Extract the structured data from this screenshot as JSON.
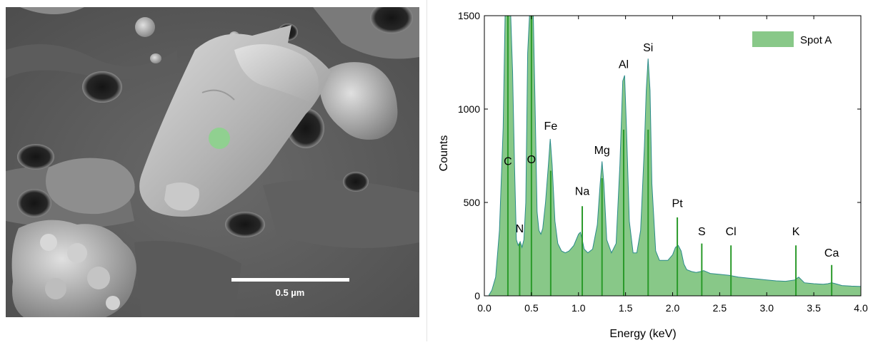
{
  "sem_image": {
    "scale_bar_label": "0.5 µm",
    "marker_color": "#90d090",
    "marker_label": "Spot A"
  },
  "chart_data": {
    "type": "area",
    "title": "",
    "xlabel": "Energy (keV)",
    "ylabel": "Counts",
    "xlim": [
      0.0,
      4.0
    ],
    "ylim": [
      0,
      1500
    ],
    "x_ticks": [
      "0.0",
      "0.5",
      "1.0",
      "1.5",
      "2.0",
      "2.5",
      "3.0",
      "3.5",
      "4.0"
    ],
    "y_ticks": [
      "0",
      "500",
      "1000",
      "1500"
    ],
    "x_tick_values": [
      0.0,
      0.5,
      1.0,
      1.5,
      2.0,
      2.5,
      3.0,
      3.5,
      4.0
    ],
    "y_tick_values": [
      0,
      500,
      1000,
      1500
    ],
    "grid": false,
    "legend_position": "top-right",
    "series": [
      {
        "name": "Spot A",
        "fill_color": "#88c888",
        "edge_color": "#2a8a8a",
        "x": [
          0.05,
          0.08,
          0.12,
          0.16,
          0.2,
          0.22,
          0.24,
          0.26,
          0.28,
          0.3,
          0.32,
          0.34,
          0.36,
          0.38,
          0.4,
          0.42,
          0.44,
          0.46,
          0.48,
          0.5,
          0.52,
          0.54,
          0.56,
          0.58,
          0.6,
          0.62,
          0.65,
          0.68,
          0.7,
          0.72,
          0.75,
          0.78,
          0.82,
          0.86,
          0.9,
          0.95,
          1.0,
          1.02,
          1.04,
          1.06,
          1.1,
          1.15,
          1.2,
          1.23,
          1.25,
          1.27,
          1.3,
          1.35,
          1.4,
          1.44,
          1.47,
          1.49,
          1.51,
          1.54,
          1.58,
          1.62,
          1.66,
          1.7,
          1.72,
          1.74,
          1.76,
          1.78,
          1.82,
          1.86,
          1.9,
          1.95,
          2.0,
          2.03,
          2.06,
          2.09,
          2.12,
          2.15,
          2.2,
          2.25,
          2.3,
          2.33,
          2.4,
          2.5,
          2.6,
          2.7,
          2.8,
          2.9,
          3.0,
          3.1,
          3.2,
          3.3,
          3.31,
          3.34,
          3.37,
          3.4,
          3.5,
          3.6,
          3.65,
          3.69,
          3.73,
          3.8,
          3.9,
          4.0
        ],
        "y": [
          5,
          30,
          100,
          350,
          900,
          1500,
          1500,
          1500,
          1500,
          1200,
          700,
          300,
          270,
          290,
          260,
          300,
          500,
          1300,
          1500,
          1500,
          1500,
          1000,
          450,
          350,
          330,
          360,
          500,
          700,
          840,
          700,
          400,
          280,
          240,
          230,
          240,
          270,
          330,
          340,
          300,
          250,
          230,
          250,
          380,
          600,
          720,
          600,
          300,
          230,
          280,
          700,
          1150,
          1180,
          900,
          400,
          230,
          230,
          350,
          800,
          1100,
          1270,
          1100,
          600,
          240,
          190,
          190,
          190,
          220,
          260,
          270,
          240,
          170,
          140,
          130,
          125,
          130,
          135,
          120,
          115,
          110,
          100,
          95,
          90,
          85,
          80,
          78,
          85,
          90,
          100,
          85,
          70,
          65,
          62,
          65,
          70,
          65,
          55,
          52,
          50
        ]
      }
    ],
    "peaks": [
      {
        "element": "C",
        "energy": 0.25,
        "height": 1500,
        "label_counts": 700
      },
      {
        "element": "N",
        "energy": 0.375,
        "height": 280,
        "label_counts": 340
      },
      {
        "element": "O",
        "energy": 0.5,
        "height": 1500,
        "label_counts": 710
      },
      {
        "element": "Fe",
        "energy": 0.705,
        "height": 670,
        "label_counts": 890
      },
      {
        "element": "Na",
        "energy": 1.04,
        "height": 480,
        "label_counts": 540
      },
      {
        "element": "Mg",
        "energy": 1.25,
        "height": 630,
        "label_counts": 760
      },
      {
        "element": "Al",
        "energy": 1.48,
        "height": 890,
        "label_counts": 1220
      },
      {
        "element": "Si",
        "energy": 1.74,
        "height": 890,
        "label_counts": 1310
      },
      {
        "element": "Pt",
        "energy": 2.05,
        "height": 420,
        "label_counts": 475
      },
      {
        "element": "S",
        "energy": 2.31,
        "height": 280,
        "label_counts": 325
      },
      {
        "element": "Cl",
        "energy": 2.62,
        "height": 270,
        "label_counts": 325
      },
      {
        "element": "K",
        "energy": 3.31,
        "height": 270,
        "label_counts": 325
      },
      {
        "element": "Ca",
        "energy": 3.69,
        "height": 165,
        "label_counts": 210
      }
    ]
  }
}
